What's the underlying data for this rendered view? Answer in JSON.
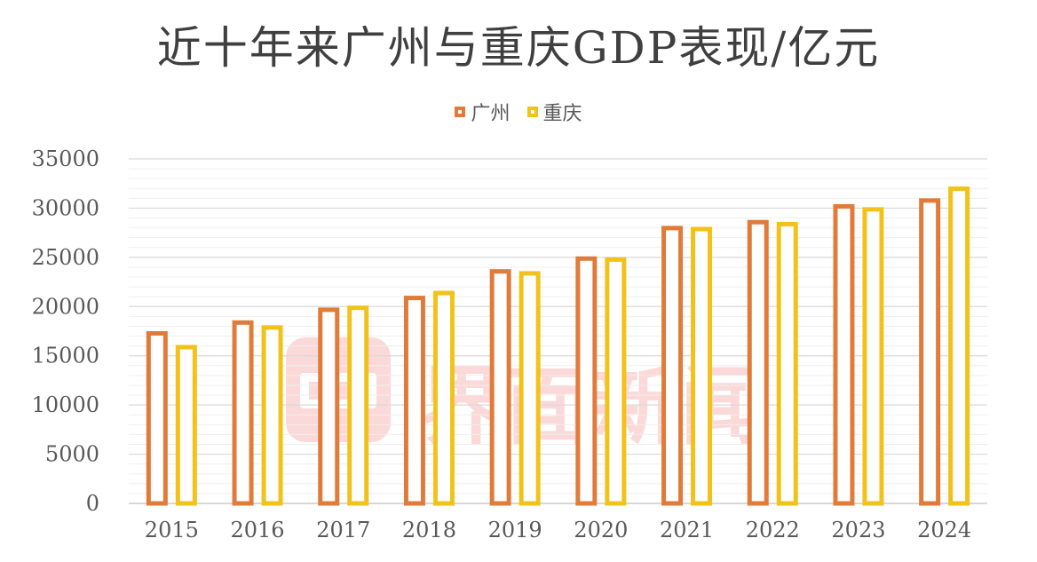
{
  "chart_data": {
    "type": "bar",
    "title": "近十年来广州与重庆GDP表现/亿元",
    "categories": [
      "2015",
      "2016",
      "2017",
      "2018",
      "2019",
      "2020",
      "2021",
      "2022",
      "2023",
      "2024"
    ],
    "series": [
      {
        "name": "广州",
        "color": "#E07B39",
        "values": [
          17500,
          18600,
          19900,
          21100,
          23800,
          25100,
          28200,
          28800,
          30400,
          31000
        ]
      },
      {
        "name": "重庆",
        "color": "#F2C21A",
        "values": [
          16100,
          18100,
          20100,
          21600,
          23600,
          25000,
          28100,
          28600,
          30100,
          32200
        ]
      }
    ],
    "ylim": [
      0,
      35000
    ],
    "yticks": [
      0,
      5000,
      10000,
      15000,
      20000,
      25000,
      30000,
      35000
    ],
    "grid": true,
    "legend_position": "top"
  },
  "watermark": {
    "text": "界面新闻",
    "icon": "jiemian-logo-icon"
  }
}
